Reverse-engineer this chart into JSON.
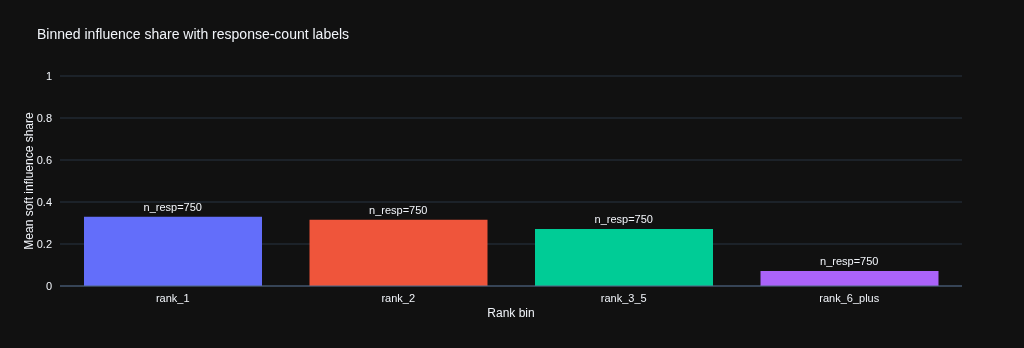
{
  "chart_data": {
    "type": "bar",
    "title": "Binned influence share with response-count labels",
    "xlabel": "Rank bin",
    "ylabel": "Mean soft influence share",
    "categories": [
      "rank_1",
      "rank_2",
      "rank_3_5",
      "rank_6_plus"
    ],
    "values": [
      0.33,
      0.315,
      0.272,
      0.071
    ],
    "colors": [
      "#636efa",
      "#ef553b",
      "#00cc96",
      "#ab63fa"
    ],
    "annotations": [
      {
        "text": "n_resp=750",
        "x": "rank_1",
        "y": 0.33
      },
      {
        "text": "n_resp=750",
        "x": "rank_2",
        "y": 0.315
      },
      {
        "text": "n_resp=750",
        "x": "rank_3_5",
        "y": 0.272
      },
      {
        "text": "n_resp=750",
        "x": "rank_6_plus",
        "y": 0.071
      }
    ],
    "ylim": [
      0,
      1
    ],
    "yticks": [
      0,
      0.2,
      0.4,
      0.6,
      0.8,
      1
    ],
    "grid": "y"
  }
}
